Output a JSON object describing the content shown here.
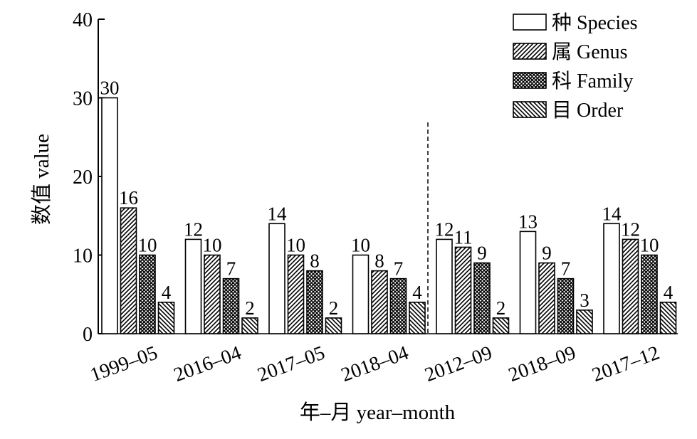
{
  "chart_data": {
    "type": "bar",
    "categories": [
      "1999–05",
      "2016–04",
      "2017–05",
      "2018–04",
      "2012–09",
      "2018–09",
      "2017–12"
    ],
    "series": [
      {
        "name": "种 Species",
        "pattern": "white",
        "values": [
          30,
          12,
          14,
          10,
          12,
          13,
          14
        ]
      },
      {
        "name": "属 Genus",
        "pattern": "diagonal",
        "values": [
          16,
          10,
          10,
          8,
          11,
          9,
          12
        ]
      },
      {
        "name": "科 Family",
        "pattern": "crosshatch",
        "values": [
          10,
          7,
          8,
          7,
          9,
          7,
          10
        ]
      },
      {
        "name": "目 Order",
        "pattern": "backslash",
        "values": [
          4,
          2,
          2,
          4,
          2,
          3,
          4
        ]
      }
    ],
    "xlabel": "年–月 year–month",
    "ylabel": "数值 value",
    "ylim": [
      0,
      40
    ],
    "yticks": [
      0,
      10,
      20,
      30,
      40
    ],
    "divider_after_index": 3,
    "legend_position": "top-right",
    "grid": false
  }
}
